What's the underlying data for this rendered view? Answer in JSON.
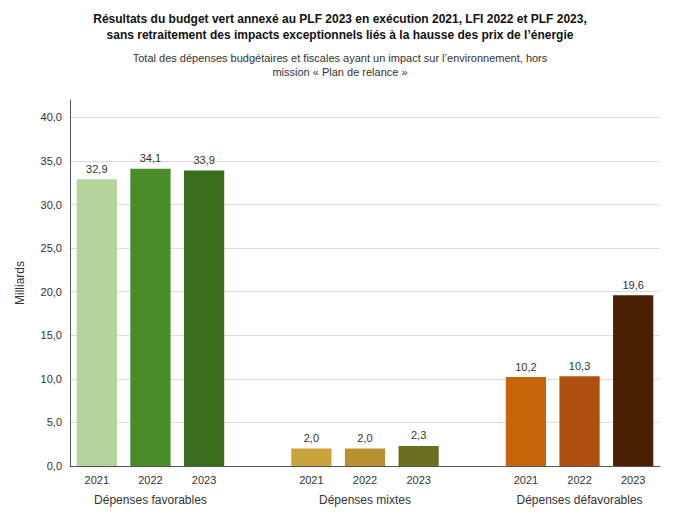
{
  "chart_data": {
    "type": "bar",
    "title": "Résultats du budget vert annexé au PLF 2023 en exécution 2021, LFI 2022 et PLF 2023,\nsans retraitement des impacts exceptionnels liés à la hausse des prix de l’énergie",
    "subtitle": "Total des dépenses budgétaires et fiscales ayant un impact sur l’environnement, hors\nmission « Plan de relance »",
    "ylabel": "Milliards",
    "categories": [
      "Dépenses favorables",
      "Dépenses mixtes",
      "Dépenses défavorables"
    ],
    "series": [
      {
        "name": "2021",
        "colors": [
          "#b5d49a",
          "#c8a43a",
          "#c8640a"
        ],
        "values": [
          32.9,
          2.0,
          10.2
        ],
        "value_labels": [
          "32,9",
          "2,0",
          "10,2"
        ]
      },
      {
        "name": "2022",
        "colors": [
          "#4a8c2a",
          "#b89030",
          "#b05010"
        ],
        "values": [
          34.1,
          2.0,
          10.3
        ],
        "value_labels": [
          "34,1",
          "2,0",
          "10,3"
        ]
      },
      {
        "name": "2023",
        "colors": [
          "#3a6e1e",
          "#6b7020",
          "#4a1e00"
        ],
        "values": [
          33.9,
          2.3,
          19.6
        ],
        "value_labels": [
          "33,9",
          "2,3",
          "19,6"
        ]
      }
    ],
    "ylim": [
      0,
      42
    ],
    "yticks": [
      {
        "value": 0.0,
        "label": "0,0"
      },
      {
        "value": 5.0,
        "label": "5,0"
      },
      {
        "value": 10.0,
        "label": "10,0"
      },
      {
        "value": 15.0,
        "label": "15,0"
      },
      {
        "value": 20.0,
        "label": "20,0"
      },
      {
        "value": 25.0,
        "label": "25,0"
      },
      {
        "value": 30.0,
        "label": "30,0"
      },
      {
        "value": 35.0,
        "label": "35,0"
      },
      {
        "value": 40.0,
        "label": "40,0"
      }
    ],
    "grid": true,
    "data_labels": true
  }
}
